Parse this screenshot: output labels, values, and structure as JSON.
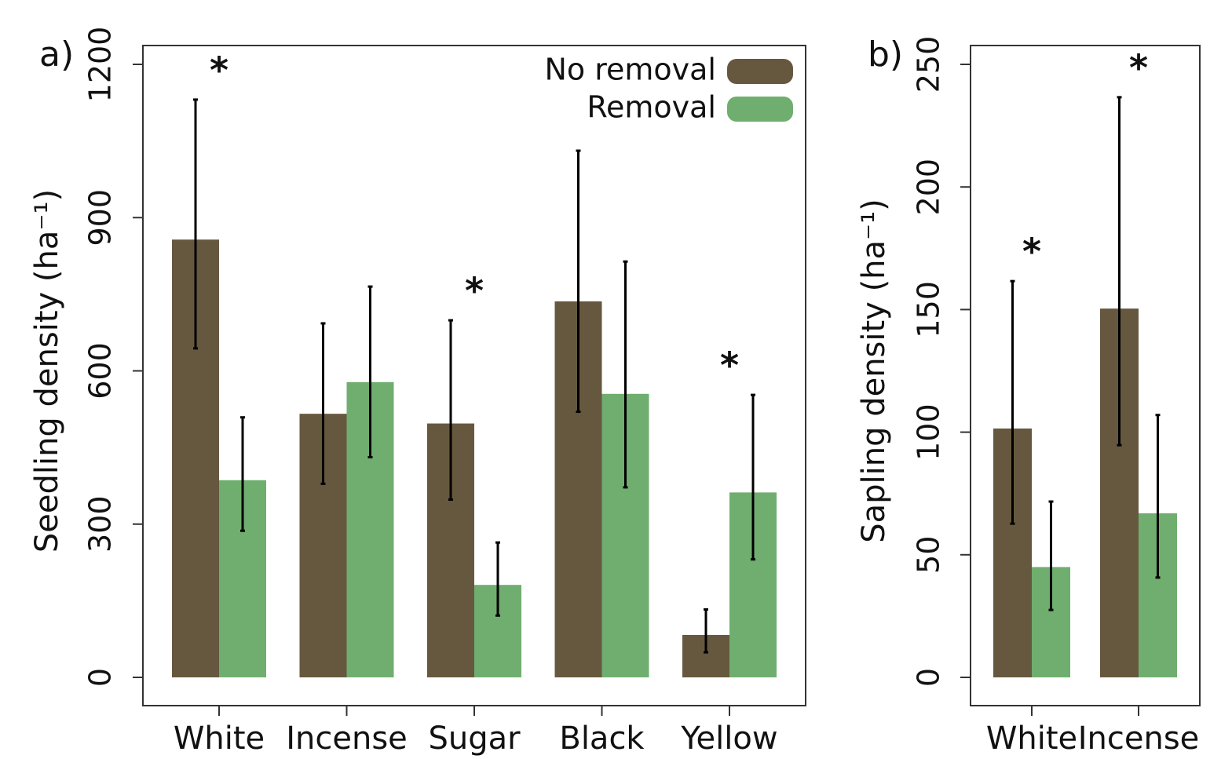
{
  "chart_data": [
    {
      "type": "bar",
      "panel_label": "a)",
      "y_label": "Seedling density (ha⁻¹)",
      "categories": [
        "White",
        "Incense",
        "Sugar",
        "Black",
        "Yellow"
      ],
      "series": [
        {
          "name": "No removal",
          "color": "#66583f",
          "values": [
            857,
            516,
            497,
            736,
            83
          ],
          "lower": [
            644,
            379,
            348,
            520,
            49
          ],
          "upper": [
            1131,
            693,
            699,
            1031,
            133
          ]
        },
        {
          "name": "Removal",
          "color": "#6fae6f",
          "values": [
            386,
            578,
            181,
            555,
            362
          ],
          "lower": [
            287,
            431,
            121,
            372,
            231
          ],
          "upper": [
            509,
            765,
            264,
            814,
            553
          ]
        }
      ],
      "significance_marker": "*",
      "significant": [
        true,
        false,
        true,
        false,
        true
      ],
      "ylim": [
        0,
        1200
      ],
      "yticks": [
        0,
        300,
        600,
        900,
        1200
      ],
      "legend": "top right"
    },
    {
      "type": "bar",
      "panel_label": "b)",
      "y_label": "Sapling density (ha⁻¹)",
      "categories": [
        "White",
        "Incense"
      ],
      "series": [
        {
          "name": "No removal",
          "color": "#66583f",
          "values": [
            101.5,
            150.4
          ],
          "lower": [
            62.7,
            94.7
          ],
          "upper": [
            161.6,
            236.6
          ]
        },
        {
          "name": "Removal",
          "color": "#6fae6f",
          "values": [
            45,
            66.9
          ],
          "lower": [
            27.5,
            40.7
          ],
          "upper": [
            71.7,
            107
          ]
        }
      ],
      "significance_marker": "*",
      "significant": [
        true,
        true
      ],
      "ylim": [
        0,
        250
      ],
      "yticks": [
        0,
        50,
        100,
        150,
        200,
        250
      ]
    }
  ]
}
